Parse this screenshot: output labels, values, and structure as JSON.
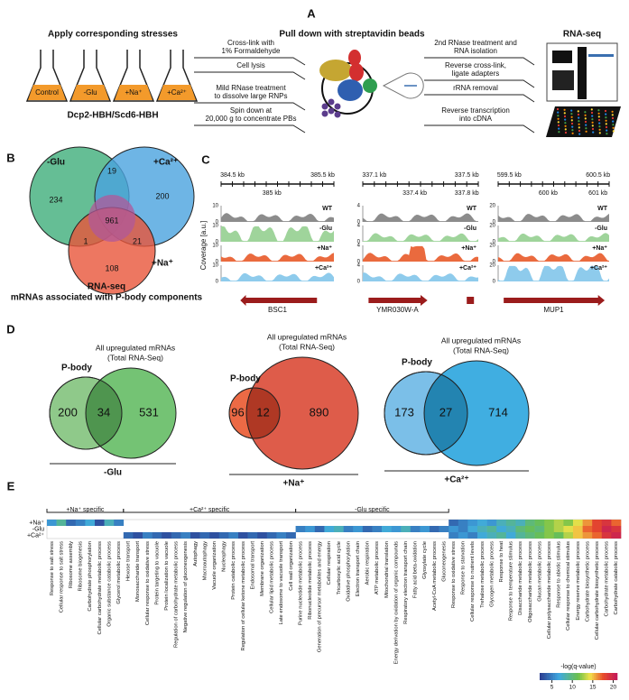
{
  "panel_a": {
    "letter": "A",
    "stress_title": "Apply corresponding stresses",
    "flasks": [
      "Control",
      "-Glu",
      "+Na⁺",
      "+Ca²⁺"
    ],
    "flask_color": "#f39a2b",
    "strain": "Dcp2-HBH/Scd6-HBH",
    "steps_left": [
      "Cross-link with",
      "1% Formaldehyde",
      "Cell lysis",
      "Mild RNase treatment",
      "to dissolve large RNPs",
      "Spin down at",
      "20,000 g to concentrate PBs"
    ],
    "pulldown_title": "Pull down with streptavidin beads",
    "steps_right": [
      "2nd RNase treatment and",
      "RNA isolation",
      "Reverse cross-link,",
      "ligate adapters",
      "rRNA removal",
      "Reverse transcription",
      "into cDNA"
    ],
    "seq_title": "RNA-seq"
  },
  "panel_b": {
    "letter": "B",
    "sets": [
      "-Glu",
      "+Ca²⁺",
      "+Na⁺"
    ],
    "set_colors": [
      "#3fae7a",
      "#4aa3df",
      "#e8553a"
    ],
    "counts": [
      234,
      19,
      200,
      961,
      1,
      21,
      108
    ],
    "caption": [
      "RNA-seq",
      "mRNAs associated with P-body components"
    ]
  },
  "panel_c": {
    "letter": "C",
    "y_label": "Coverage [a.u.]",
    "conditions": [
      "WT",
      "-Glu",
      "+Na⁺",
      "+Ca²⁺"
    ],
    "condition_colors": [
      "#8c8c8c",
      "#9fd49b",
      "#ea6a3e",
      "#8ecbec"
    ],
    "loci": [
      {
        "top_ticks": [
          "384.5 kb",
          "385.5 kb"
        ],
        "bottom_ticks": [
          "385 kb"
        ],
        "ylim": [
          0,
          10
        ],
        "gene": "BSC1",
        "highlight": 1
      },
      {
        "top_ticks": [
          "337.1 kb",
          "337.5 kb"
        ],
        "bottom_ticks": [
          "337.4 kb",
          "337.8 kb"
        ],
        "ylim": [
          0,
          4
        ],
        "gene": "YMR030W-A",
        "highlight": 2
      },
      {
        "top_ticks": [
          "599.5 kb",
          "600.5 kb"
        ],
        "bottom_ticks": [
          "600 kb",
          "601 kb"
        ],
        "ylim": [
          0,
          20
        ],
        "gene": "MUP1"
      }
    ]
  },
  "panel_d": {
    "letter": "D",
    "venns": [
      {
        "left": "P-body",
        "right": [
          "All upregulated mRNAs",
          "(Total RNA-Seq)"
        ],
        "counts": [
          200,
          34,
          531
        ],
        "condition": "-Glu",
        "colors": [
          "#8fc98a",
          "#5cb85c"
        ]
      },
      {
        "left": "P-body",
        "right": [
          "All upregulated mRNAs",
          "(Total RNA-Seq)"
        ],
        "counts": [
          96,
          12,
          890
        ],
        "condition": "+Na⁺",
        "colors": [
          "#ec6a45",
          "#d8402a"
        ]
      },
      {
        "left": "P-body",
        "right": [
          "All upregulated mRNAs",
          "(Total RNA-Seq)"
        ],
        "counts": [
          173,
          27,
          714
        ],
        "condition": "+Ca²⁺",
        "colors": [
          "#7bbfe8",
          "#1fa0dc"
        ]
      }
    ]
  },
  "panel_e": {
    "letter": "E",
    "rows": [
      "+Na⁺",
      "-Glu",
      "+Ca²⁺"
    ],
    "groups": [
      "+Na⁺ specific",
      "+Ca²⁺ specific",
      "-Glu specific"
    ],
    "terms": [
      "Response to salt stress",
      "Cellular response to salt stress",
      "Ribosome assembly",
      "Ribosome biogenesis",
      "Carbohydrate phosphorylation",
      "Cellular carbohydrate metabolic process",
      "Organic substance catabolic process",
      "Glycerol metabolic process",
      "Hexose transport",
      "Monosaccharide transport",
      "Cellular response to oxidative stress",
      "Protein targeting to vacuole",
      "Protein localization to vacuole",
      "Regulation of carbohydrate metabolic process",
      "Negative regulation of gluconeogenesis",
      "Autophagy",
      "Macroautophagy",
      "Vacuole organization",
      "Nucleophagy",
      "Protein catabolic process",
      "Regulation of cellular ketone metabolic process",
      "Endosomal transport",
      "Membrane organization",
      "Cellular lipid metabolic process",
      "Late endosome to vacuole transport",
      "Cell wall organization",
      "Purine nucleotide metabolic process",
      "Ribonucleotide metabolic process",
      "Generation of precursor metabolites and energy",
      "Cellular respiration",
      "Tricarboxylic acid cycle",
      "Oxidative phosphorylation",
      "Electron transport chain",
      "Aerobic respiration",
      "ATP metabolic process",
      "Mitochondrial translation",
      "Energy derivation by oxidation of organic compounds",
      "Respiratory electron transport chain",
      "Fatty acid beta-oxidation",
      "Glyoxylate cycle",
      "Acetyl-CoA metabolic process",
      "Gluconeogenesis",
      "Response to oxidative stress",
      "Response to starvation",
      "Cellular response to nutrient levels",
      "Trehalose metabolic process",
      "Glycogen metabolic process",
      "Response to heat",
      "Response to temperature stimulus",
      "Disaccharide metabolic process",
      "Oligosaccharide metabolic process",
      "Glucan metabolic process",
      "Cellular polysaccharide metabolic process",
      "Response to abiotic stimulus",
      "Cellular response to chemical stimulus",
      "Energy reserve metabolic process",
      "Carbohydrate biosynthetic process",
      "Cellular carbohydrate biosynthetic process",
      "Carbohydrate metabolic process",
      "Carbohydrate catabolic process"
    ],
    "values": [
      [
        6,
        9,
        4,
        5,
        7,
        3,
        8,
        5,
        null,
        null,
        null,
        null,
        null,
        null,
        null,
        null,
        null,
        null,
        null,
        null,
        null,
        null,
        null,
        null,
        null,
        null,
        null,
        null,
        null,
        null,
        null,
        null,
        null,
        null,
        null,
        null,
        null,
        null,
        null,
        null,
        null,
        null,
        4,
        5,
        6,
        7,
        6,
        8,
        9,
        8,
        10,
        11,
        12,
        13,
        12,
        14,
        16,
        18,
        19,
        17
      ],
      [
        null,
        null,
        null,
        null,
        null,
        null,
        null,
        null,
        null,
        null,
        null,
        null,
        null,
        null,
        null,
        null,
        null,
        null,
        null,
        null,
        null,
        null,
        null,
        null,
        null,
        null,
        5,
        6,
        4,
        7,
        8,
        5,
        6,
        4,
        5,
        7,
        6,
        8,
        5,
        6,
        4,
        5,
        6,
        5,
        7,
        8,
        9,
        7,
        8,
        10,
        11,
        10,
        12,
        13,
        14,
        15,
        17,
        18,
        20,
        19
      ],
      [
        null,
        null,
        null,
        null,
        null,
        null,
        null,
        null,
        4,
        3,
        5,
        4,
        3,
        4,
        5,
        3,
        4,
        3,
        4,
        5,
        3,
        4,
        3,
        4,
        5,
        4,
        null,
        null,
        null,
        null,
        null,
        null,
        null,
        null,
        null,
        null,
        null,
        null,
        null,
        null,
        null,
        null,
        5,
        6,
        5,
        7,
        8,
        9,
        7,
        9,
        10,
        11,
        12,
        11,
        13,
        15,
        16,
        17,
        19,
        20
      ]
    ],
    "legend_title": "-log(q-value)",
    "clim": [
      2,
      21
    ],
    "legend_ticks": [
      5,
      10,
      15,
      20
    ]
  }
}
